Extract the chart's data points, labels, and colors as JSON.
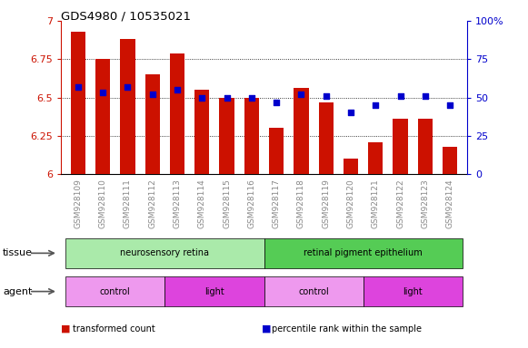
{
  "title": "GDS4980 / 10535021",
  "samples": [
    "GSM928109",
    "GSM928110",
    "GSM928111",
    "GSM928112",
    "GSM928113",
    "GSM928114",
    "GSM928115",
    "GSM928116",
    "GSM928117",
    "GSM928118",
    "GSM928119",
    "GSM928120",
    "GSM928121",
    "GSM928122",
    "GSM928123",
    "GSM928124"
  ],
  "bar_values": [
    6.93,
    6.75,
    6.88,
    6.65,
    6.79,
    6.55,
    6.5,
    6.5,
    6.3,
    6.56,
    6.47,
    6.1,
    6.21,
    6.36,
    6.36,
    6.18
  ],
  "dot_values": [
    57,
    53,
    57,
    52,
    55,
    50,
    50,
    50,
    47,
    52,
    51,
    40,
    45,
    51,
    51,
    45
  ],
  "bar_color": "#cc1100",
  "dot_color": "#0000cc",
  "ylim": [
    6.0,
    7.0
  ],
  "y2lim": [
    0,
    100
  ],
  "yticks": [
    6.0,
    6.25,
    6.5,
    6.75,
    7.0
  ],
  "y2ticks": [
    0,
    25,
    50,
    75,
    100
  ],
  "ytick_labels": [
    "6",
    "6.25",
    "6.5",
    "6.75",
    "7"
  ],
  "y2tick_labels": [
    "0",
    "25",
    "50",
    "75",
    "100%"
  ],
  "tissue_labels": [
    {
      "text": "neurosensory retina",
      "start": 0,
      "end": 7,
      "color": "#aaeaaa"
    },
    {
      "text": "retinal pigment epithelium",
      "start": 8,
      "end": 15,
      "color": "#55cc55"
    }
  ],
  "agent_labels": [
    {
      "text": "control",
      "start": 0,
      "end": 3,
      "color": "#ee99ee"
    },
    {
      "text": "light",
      "start": 4,
      "end": 7,
      "color": "#dd44dd"
    },
    {
      "text": "control",
      "start": 8,
      "end": 11,
      "color": "#ee99ee"
    },
    {
      "text": "light",
      "start": 12,
      "end": 15,
      "color": "#dd44dd"
    }
  ],
  "legend_items": [
    {
      "label": "transformed count",
      "color": "#cc1100"
    },
    {
      "label": "percentile rank within the sample",
      "color": "#0000cc"
    }
  ],
  "tissue_row_label": "tissue",
  "agent_row_label": "agent",
  "bg_color": "#ffffff",
  "axis_color_left": "#cc1100",
  "axis_color_right": "#0000cc",
  "tick_label_gray": "#888888"
}
